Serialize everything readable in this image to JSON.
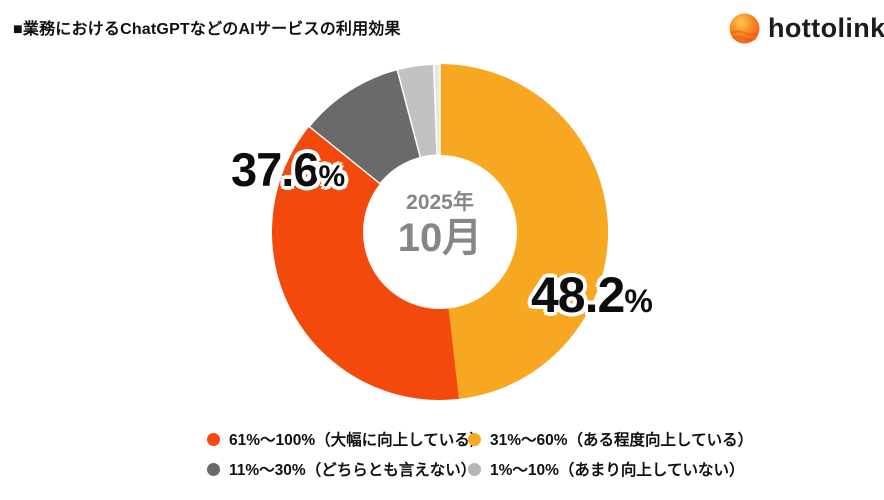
{
  "header": {
    "title": "■業務におけるChatGPTなどのAIサービスの利用効果",
    "logo_text": "hottolink"
  },
  "chart_data": {
    "type": "pie",
    "subtype": "donut",
    "title": "業務におけるChatGPTなどのAIサービスの利用効果",
    "center_label": {
      "line1": "2025年",
      "line2": "10月"
    },
    "unit": "%",
    "start_angle_deg": 0,
    "direction": "clockwise",
    "inner_radius_ratio": 0.46,
    "segments": [
      {
        "label": "31%〜60%（ある程度向上している）",
        "value": 48.2,
        "color": "#F7A721",
        "labeled_on_chart": true
      },
      {
        "label": "61%〜100%（大幅に向上している）",
        "value": 37.6,
        "color": "#F4490D",
        "labeled_on_chart": true
      },
      {
        "label": "11%〜30%（どちらとも言えない）",
        "value": 10.1,
        "color": "#6A6A6A",
        "estimated": true
      },
      {
        "label": "1%〜10%（あまり向上していない）",
        "value": 3.5,
        "color": "#C2C2C2",
        "estimated": true
      },
      {
        "label": "",
        "value": 0.6,
        "color": "#E8E6E2",
        "estimated": true
      }
    ]
  },
  "legend": {
    "items": [
      {
        "label": "61%〜100%（大幅に向上している）",
        "color": "#F4490D"
      },
      {
        "label": "31%〜60%（ある程度向上している）",
        "color": "#F7A721"
      },
      {
        "label": "11%〜30%（どちらとも言えない）",
        "color": "#6A6A6A"
      },
      {
        "label": "1%〜10%（あまり向上していない）",
        "color": "#B5B5B5"
      }
    ]
  },
  "logo_colors": {
    "outer": "#EF5A1E",
    "mid": "#F58220",
    "highlight": "#FFC94F",
    "wave": "#E8560F"
  }
}
